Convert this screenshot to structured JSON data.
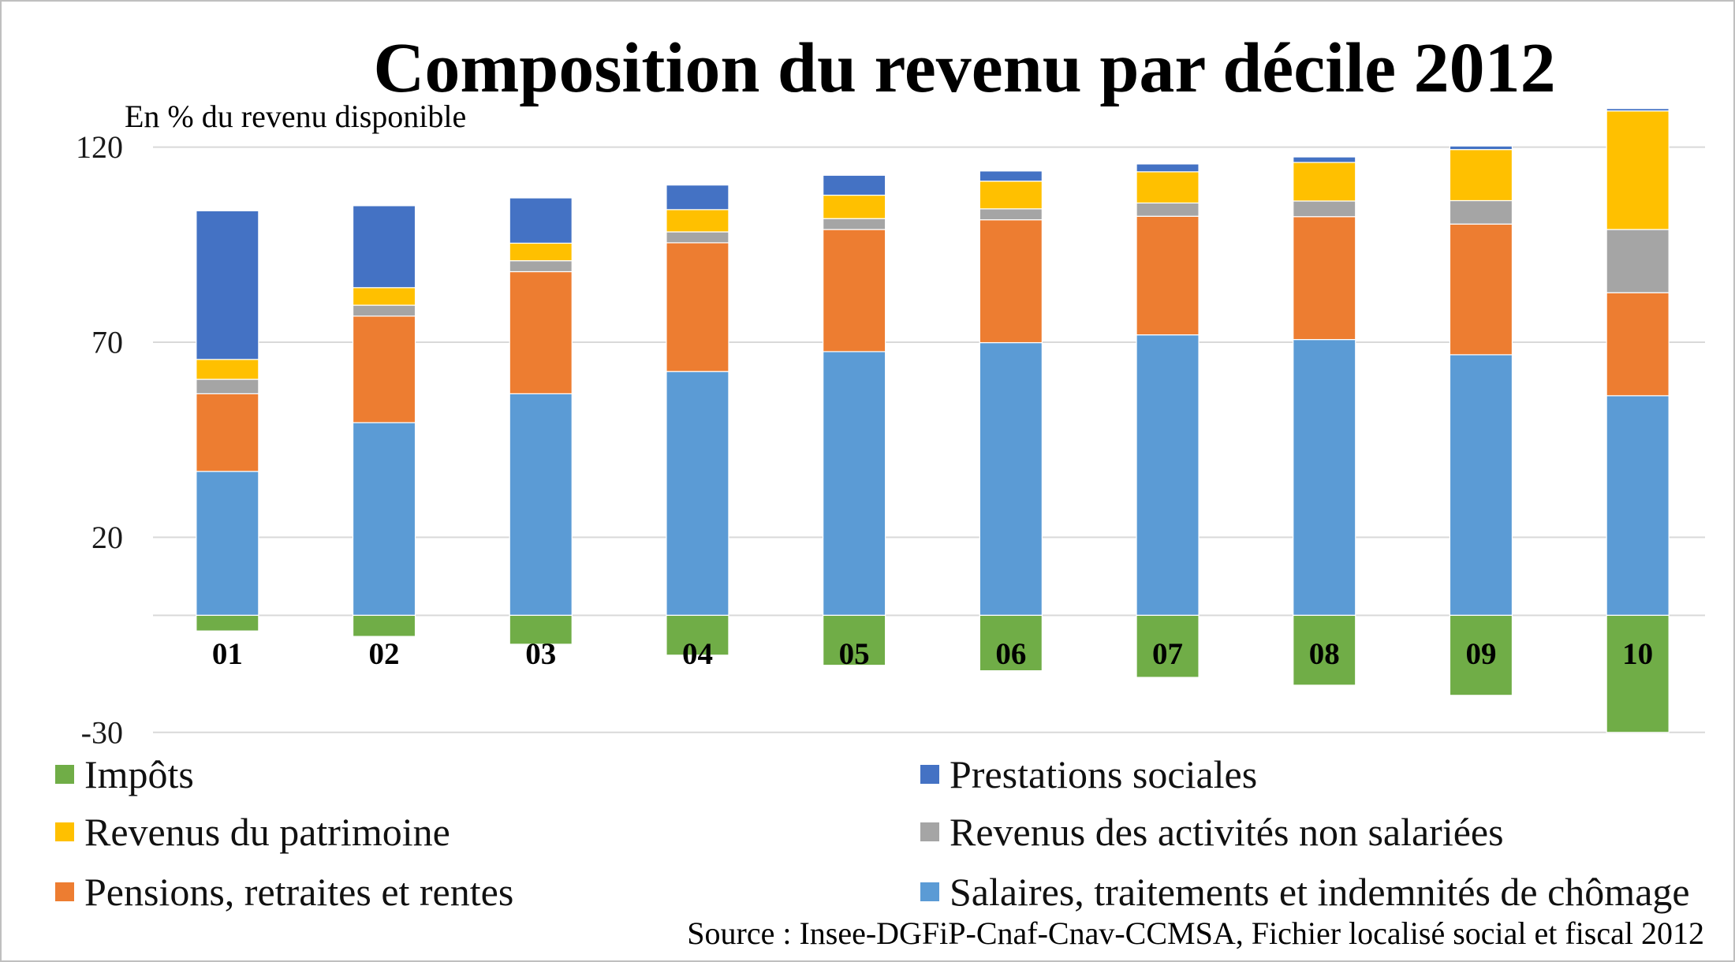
{
  "chart_data": {
    "type": "bar",
    "stacked": true,
    "title": "Composition du revenu par décile 2012",
    "ylabel": "En % du revenu disponible",
    "xlabel": "",
    "categories": [
      "01",
      "02",
      "03",
      "04",
      "05",
      "06",
      "07",
      "08",
      "09",
      "10"
    ],
    "ylim": [
      -30,
      130
    ],
    "yticks": [
      120,
      70,
      20,
      -30
    ],
    "grid": true,
    "legend_position": "bottom",
    "series": [
      {
        "name": "Impôts",
        "color": "#70AD47",
        "values": [
          -4.0,
          -5.4,
          -7.4,
          -10.2,
          -12.8,
          -14.2,
          -15.9,
          -17.9,
          -20.5,
          -30.0
        ]
      },
      {
        "name": "Prestations sociales",
        "color": "#4472C4",
        "values": [
          38.1,
          21.0,
          11.6,
          6.3,
          5.1,
          2.6,
          2.0,
          1.4,
          0.9,
          0.6
        ]
      },
      {
        "name": "Revenus du patrimoine",
        "color": "#FFC000",
        "values": [
          5.1,
          4.5,
          4.5,
          5.7,
          6.0,
          7.1,
          8.0,
          9.9,
          13.1,
          30.4
        ]
      },
      {
        "name": "Revenus des activités non salariées",
        "color": "#A5A5A5",
        "values": [
          3.7,
          2.8,
          2.8,
          2.8,
          2.8,
          2.8,
          3.4,
          4.0,
          6.0,
          16.2
        ]
      },
      {
        "name": "Pensions, retraites et rentes",
        "color": "#ED7D31",
        "values": [
          19.9,
          27.3,
          31.3,
          33.0,
          31.3,
          31.5,
          30.4,
          31.5,
          33.5,
          26.4
        ]
      },
      {
        "name": "Salaires, traitements et indemnités de chômage",
        "color": "#5B9BD5",
        "values": [
          36.9,
          49.4,
          56.8,
          62.5,
          67.6,
          69.9,
          71.9,
          70.7,
          66.8,
          56.3
        ]
      }
    ]
  },
  "source": "Source : Insee-DGFiP-Cnaf-Cnav-CCMSA, Fichier localisé social et fiscal 2012"
}
